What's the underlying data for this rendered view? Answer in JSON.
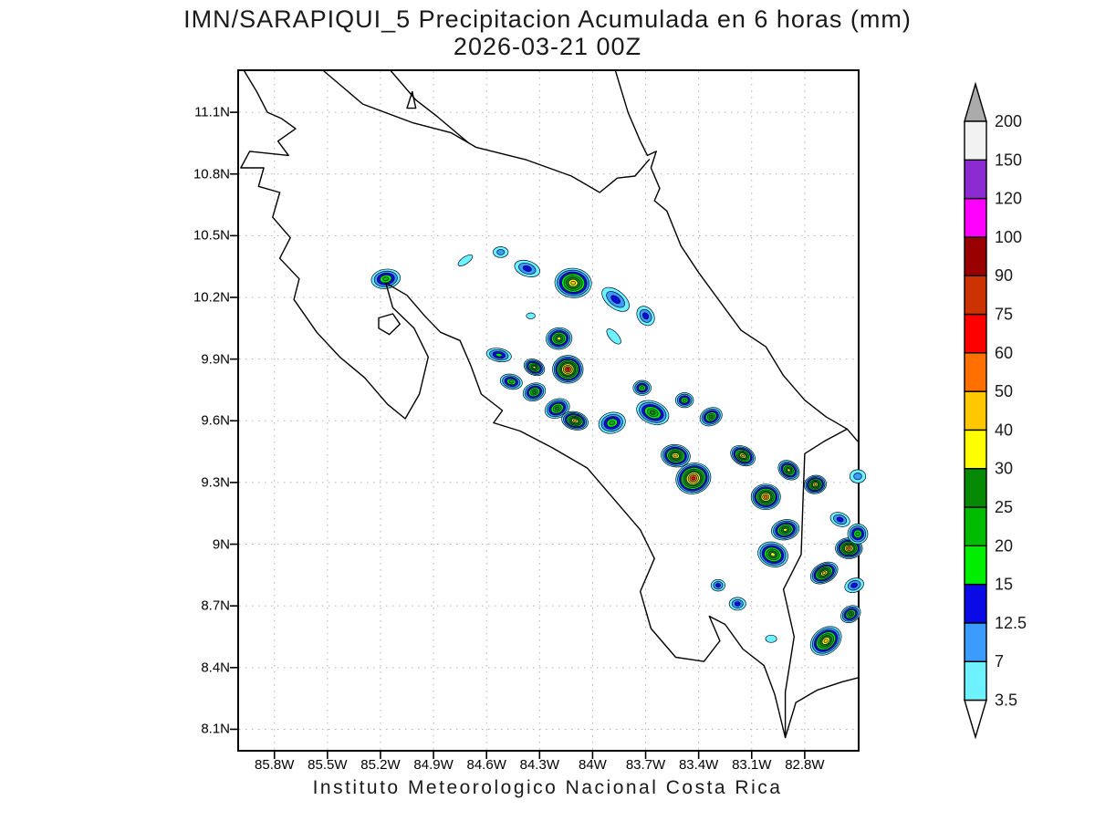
{
  "title": {
    "line1": "IMN/SARAPIQUI_5 Precipitacion Acumulada en 6 horas (mm)",
    "line2": "2026-03-21 00Z"
  },
  "footer": "Instituto Meteorologico Nacional Costa Rica",
  "axes": {
    "lat_tick_labels": [
      "11.1N",
      "10.8N",
      "10.5N",
      "10.2N",
      "9.9N",
      "9.6N",
      "9.3N",
      "9N",
      "8.7N",
      "8.4N",
      "8.1N"
    ],
    "lat_tick_values": [
      11.1,
      10.8,
      10.5,
      10.2,
      9.9,
      9.6,
      9.3,
      9.0,
      8.7,
      8.4,
      8.1
    ],
    "lon_tick_labels": [
      "85.8W",
      "85.5W",
      "85.2W",
      "84.9W",
      "84.6W",
      "84.3W",
      "84W",
      "83.7W",
      "83.4W",
      "83.1W",
      "82.8W"
    ],
    "lon_tick_values": [
      -85.8,
      -85.5,
      -85.2,
      -84.9,
      -84.6,
      -84.3,
      -84.0,
      -83.7,
      -83.4,
      -83.1,
      -82.8
    ]
  },
  "map_extent": {
    "lon_min": -86.0,
    "lon_max": -82.5,
    "lat_min": 8.0,
    "lat_max": 11.3
  },
  "style_colors": {
    "grid": "#b0b0b0",
    "coastline": "#000000",
    "contour_line": "#000a28",
    "frame": "#000000",
    "text": "#1a1a1a"
  },
  "colorbar": {
    "levels": [
      3.5,
      7,
      12.5,
      15,
      20,
      25,
      30,
      40,
      50,
      60,
      75,
      90,
      100,
      120,
      150,
      200
    ],
    "band_colors": [
      "#6ef2ff",
      "#3c9bff",
      "#0a0ae6",
      "#00ef00",
      "#00bb00",
      "#068a06",
      "#ffff00",
      "#ffc800",
      "#ff7000",
      "#ff0000",
      "#cc3300",
      "#990000",
      "#ff00ff",
      "#8c2bd1",
      "#f2f2f2"
    ],
    "over_arrow_color": "#ababab",
    "under_arrow_color": "#ffffff"
  },
  "chart_data": {
    "type": "heatmap",
    "variable": "Precipitacion Acumulada en 6 horas",
    "units": "mm",
    "source_label": "IMN/SARAPIQUI_5",
    "valid_time": "2026-03-21 00Z",
    "lon_range": [
      -86.0,
      -82.5
    ],
    "lat_range": [
      8.0,
      11.3
    ],
    "levels_mm": [
      3.5,
      7,
      12.5,
      15,
      20,
      25,
      30,
      40,
      50,
      60,
      75,
      90,
      100,
      120,
      150,
      200
    ],
    "cell_format": [
      "lon",
      "lat",
      "peak_mm",
      "outer_radius_px",
      "aspect",
      "rotation_deg"
    ],
    "cells": [
      [
        -85.17,
        10.29,
        20,
        13,
        1.5,
        -8
      ],
      [
        -84.37,
        10.34,
        12.5,
        11,
        1.7,
        18
      ],
      [
        -84.52,
        10.42,
        7,
        7,
        1.4,
        0
      ],
      [
        -84.72,
        10.38,
        3.5,
        6,
        2.4,
        -35
      ],
      [
        -84.11,
        10.27,
        40,
        18,
        1.25,
        5
      ],
      [
        -83.87,
        10.19,
        12.5,
        13,
        1.8,
        38
      ],
      [
        -83.7,
        10.11,
        12.5,
        10,
        1.3,
        55
      ],
      [
        -84.35,
        10.11,
        3.5,
        4,
        1.5,
        0
      ],
      [
        -84.19,
        10.0,
        30,
        13,
        1.2,
        -5
      ],
      [
        -84.33,
        9.86,
        30,
        10,
        1.4,
        25
      ],
      [
        -84.14,
        9.85,
        60,
        16,
        1.1,
        0
      ],
      [
        -83.88,
        10.01,
        3.5,
        7,
        2.2,
        48
      ],
      [
        -84.46,
        9.79,
        20,
        10,
        1.5,
        12
      ],
      [
        -84.33,
        9.74,
        25,
        11,
        1.3,
        -18
      ],
      [
        -84.53,
        9.92,
        15,
        10,
        1.9,
        10
      ],
      [
        -84.2,
        9.66,
        25,
        12,
        1.35,
        -22
      ],
      [
        -84.1,
        9.6,
        40,
        12,
        1.5,
        14
      ],
      [
        -83.89,
        9.59,
        20,
        13,
        1.3,
        -14
      ],
      [
        -83.72,
        9.76,
        20,
        9,
        1.2,
        0
      ],
      [
        -83.66,
        9.64,
        25,
        15,
        1.5,
        22
      ],
      [
        -83.48,
        9.7,
        20,
        9,
        1.2,
        0
      ],
      [
        -83.33,
        9.62,
        25,
        11,
        1.3,
        -24
      ],
      [
        -83.53,
        9.43,
        40,
        14,
        1.3,
        8
      ],
      [
        -83.43,
        9.32,
        60,
        18,
        1.15,
        -18
      ],
      [
        -83.15,
        9.43,
        40,
        12,
        1.4,
        28
      ],
      [
        -83.02,
        9.23,
        50,
        15,
        1.15,
        0
      ],
      [
        -82.89,
        9.36,
        30,
        11,
        1.3,
        36
      ],
      [
        -82.74,
        9.29,
        40,
        11,
        1.2,
        -10
      ],
      [
        -82.6,
        9.12,
        12.5,
        9,
        1.5,
        20
      ],
      [
        -82.5,
        9.33,
        7,
        8,
        1.2,
        0
      ],
      [
        -82.91,
        9.07,
        30,
        13,
        1.4,
        -12
      ],
      [
        -82.98,
        8.95,
        30,
        15,
        1.25,
        18
      ],
      [
        -82.55,
        8.98,
        50,
        13,
        1.3,
        0
      ],
      [
        -82.69,
        8.86,
        40,
        13,
        1.5,
        -28
      ],
      [
        -82.5,
        9.05,
        20,
        11,
        1.0,
        0
      ],
      [
        -83.18,
        8.71,
        12.5,
        8,
        1.3,
        0
      ],
      [
        -83.29,
        8.8,
        12.5,
        7,
        1.2,
        0
      ],
      [
        -82.68,
        8.53,
        40,
        16,
        1.35,
        -38
      ],
      [
        -82.52,
        8.8,
        12.5,
        9,
        1.4,
        -20
      ],
      [
        -82.99,
        8.54,
        3.5,
        5,
        1.5,
        0
      ],
      [
        -82.54,
        8.66,
        25,
        10,
        1.3,
        -30
      ]
    ],
    "coastlines": [
      {
        "name": "pacific-coast",
        "closed": false,
        "points": [
          [
            -85.97,
            11.3
          ],
          [
            -85.9,
            11.2
          ],
          [
            -85.84,
            11.1
          ],
          [
            -85.76,
            11.07
          ],
          [
            -85.68,
            11.02
          ],
          [
            -85.78,
            10.96
          ],
          [
            -85.72,
            10.89
          ],
          [
            -85.94,
            10.91
          ],
          [
            -85.99,
            10.83
          ],
          [
            -85.86,
            10.83
          ],
          [
            -85.89,
            10.74
          ],
          [
            -85.77,
            10.71
          ],
          [
            -85.81,
            10.59
          ],
          [
            -85.71,
            10.49
          ],
          [
            -85.77,
            10.39
          ],
          [
            -85.66,
            10.29
          ],
          [
            -85.69,
            10.19
          ],
          [
            -85.56,
            10.03
          ],
          [
            -85.43,
            9.91
          ],
          [
            -85.29,
            9.81
          ],
          [
            -85.16,
            9.68
          ],
          [
            -85.06,
            9.61
          ],
          [
            -84.98,
            9.73
          ],
          [
            -84.93,
            9.91
          ],
          [
            -85.01,
            10.05
          ],
          [
            -85.13,
            10.15
          ],
          [
            -85.17,
            10.27
          ],
          [
            -85.05,
            10.21
          ],
          [
            -84.95,
            10.11
          ],
          [
            -84.86,
            10.03
          ],
          [
            -84.75,
            9.99
          ],
          [
            -84.69,
            9.87
          ],
          [
            -84.63,
            9.73
          ],
          [
            -84.51,
            9.65
          ],
          [
            -84.56,
            9.59
          ],
          [
            -84.41,
            9.55
          ],
          [
            -84.23,
            9.47
          ],
          [
            -84.03,
            9.37
          ],
          [
            -83.89,
            9.23
          ],
          [
            -83.73,
            9.07
          ],
          [
            -83.65,
            8.93
          ],
          [
            -83.73,
            8.77
          ],
          [
            -83.67,
            8.59
          ],
          [
            -83.53,
            8.45
          ],
          [
            -83.37,
            8.43
          ],
          [
            -83.28,
            8.53
          ],
          [
            -83.34,
            8.65
          ],
          [
            -83.25,
            8.61
          ],
          [
            -83.15,
            8.49
          ],
          [
            -83.03,
            8.41
          ],
          [
            -82.97,
            8.27
          ],
          [
            -82.91,
            8.06
          ],
          [
            -82.85,
            8.23
          ],
          [
            -82.73,
            8.29
          ],
          [
            -82.59,
            8.33
          ],
          [
            -82.5,
            8.35
          ]
        ]
      },
      {
        "name": "lake-nicaragua-sw-shore-border",
        "closed": false,
        "points": [
          [
            -85.52,
            11.3
          ],
          [
            -85.3,
            11.14
          ],
          [
            -85.02,
            11.05
          ],
          [
            -84.8,
            11.0
          ],
          [
            -84.66,
            10.93
          ],
          [
            -84.38,
            10.87
          ],
          [
            -84.12,
            10.79
          ],
          [
            -83.96,
            10.71
          ],
          [
            -83.86,
            10.78
          ],
          [
            -83.76,
            10.79
          ],
          [
            -83.68,
            10.87
          ]
        ]
      },
      {
        "name": "lake-nicaragua-east-shore",
        "closed": false,
        "points": [
          [
            -85.14,
            11.3
          ],
          [
            -85.0,
            11.16
          ],
          [
            -84.88,
            11.08
          ],
          [
            -84.7,
            10.95
          ]
        ]
      },
      {
        "name": "ometepe-island",
        "closed": true,
        "points": [
          [
            -85.05,
            11.12
          ],
          [
            -85.0,
            11.12
          ],
          [
            -85.02,
            11.2
          ]
        ]
      },
      {
        "name": "caribbean-coast",
        "closed": false,
        "points": [
          [
            -83.87,
            11.3
          ],
          [
            -83.8,
            11.1
          ],
          [
            -83.73,
            10.96
          ],
          [
            -83.69,
            10.89
          ],
          [
            -83.64,
            10.91
          ],
          [
            -83.67,
            10.83
          ],
          [
            -83.62,
            10.73
          ],
          [
            -83.65,
            10.67
          ],
          [
            -83.58,
            10.62
          ],
          [
            -83.5,
            10.45
          ],
          [
            -83.4,
            10.32
          ],
          [
            -83.28,
            10.18
          ],
          [
            -83.16,
            10.04
          ],
          [
            -83.02,
            9.96
          ],
          [
            -82.92,
            9.82
          ],
          [
            -82.8,
            9.7
          ],
          [
            -82.68,
            9.62
          ],
          [
            -82.56,
            9.56
          ],
          [
            -82.5,
            9.5
          ]
        ]
      },
      {
        "name": "panama-border",
        "closed": false,
        "points": [
          [
            -82.56,
            9.56
          ],
          [
            -82.69,
            9.5
          ],
          [
            -82.8,
            9.44
          ],
          [
            -82.81,
            9.2
          ],
          [
            -82.82,
            8.95
          ],
          [
            -82.92,
            8.78
          ],
          [
            -82.86,
            8.55
          ],
          [
            -82.91,
            8.28
          ],
          [
            -82.91,
            8.06
          ]
        ]
      },
      {
        "name": "chira-island",
        "closed": true,
        "points": [
          [
            -85.21,
            10.1
          ],
          [
            -85.13,
            10.12
          ],
          [
            -85.09,
            10.07
          ],
          [
            -85.15,
            10.02
          ],
          [
            -85.21,
            10.05
          ]
        ]
      }
    ]
  }
}
